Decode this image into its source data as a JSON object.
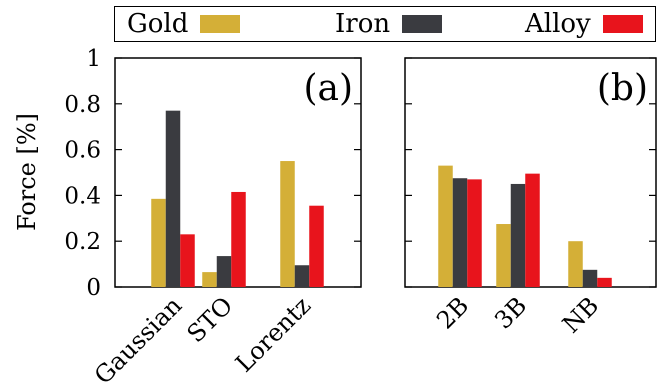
{
  "colors": {
    "Gold": "#d4af37",
    "Iron": "#3a3b40",
    "Alloy": "#e8141c"
  },
  "chart_data": [
    {
      "type": "bar",
      "panel_label": "(a)",
      "categories": [
        "Gaussian",
        "STO",
        "Lorentz"
      ],
      "series": [
        {
          "name": "Gold",
          "values": [
            0.385,
            0.065,
            0.55
          ]
        },
        {
          "name": "Iron",
          "values": [
            0.77,
            0.135,
            0.095
          ]
        },
        {
          "name": "Alloy",
          "values": [
            0.23,
            0.415,
            0.355
          ]
        }
      ],
      "ylabel": "Force [%]",
      "ylim": [
        0,
        1
      ],
      "yticks": [
        "0",
        "0.2",
        "0.4",
        "0.6",
        "0.8",
        "1"
      ],
      "grid": false,
      "legend": "top"
    },
    {
      "type": "bar",
      "panel_label": "(b)",
      "categories": [
        "2B",
        "3B",
        "NB"
      ],
      "series": [
        {
          "name": "Gold",
          "values": [
            0.53,
            0.275,
            0.2
          ]
        },
        {
          "name": "Iron",
          "values": [
            0.475,
            0.45,
            0.075
          ]
        },
        {
          "name": "Alloy",
          "values": [
            0.47,
            0.495,
            0.04
          ]
        }
      ],
      "ylim": [
        0,
        1
      ],
      "grid": false
    }
  ]
}
